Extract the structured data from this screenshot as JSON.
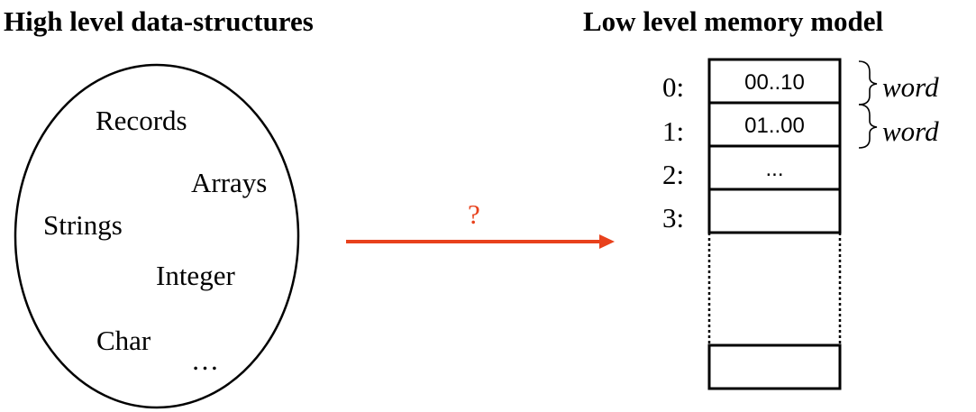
{
  "titles": {
    "left": "High level  data-structures",
    "right": "Low level memory model"
  },
  "data_structures": {
    "records": "Records",
    "arrays": "Arrays",
    "strings": "Strings",
    "integer": "Integer",
    "char": "Char",
    "ellipsis": "…"
  },
  "mapping": {
    "question": "?",
    "arrow_color": "#e8411c"
  },
  "memory": {
    "addresses": [
      "0:",
      "1:",
      "2:",
      "3:"
    ],
    "cells": [
      "00..10",
      "01..00",
      "...",
      ""
    ],
    "word_labels": [
      "word",
      "word"
    ]
  }
}
